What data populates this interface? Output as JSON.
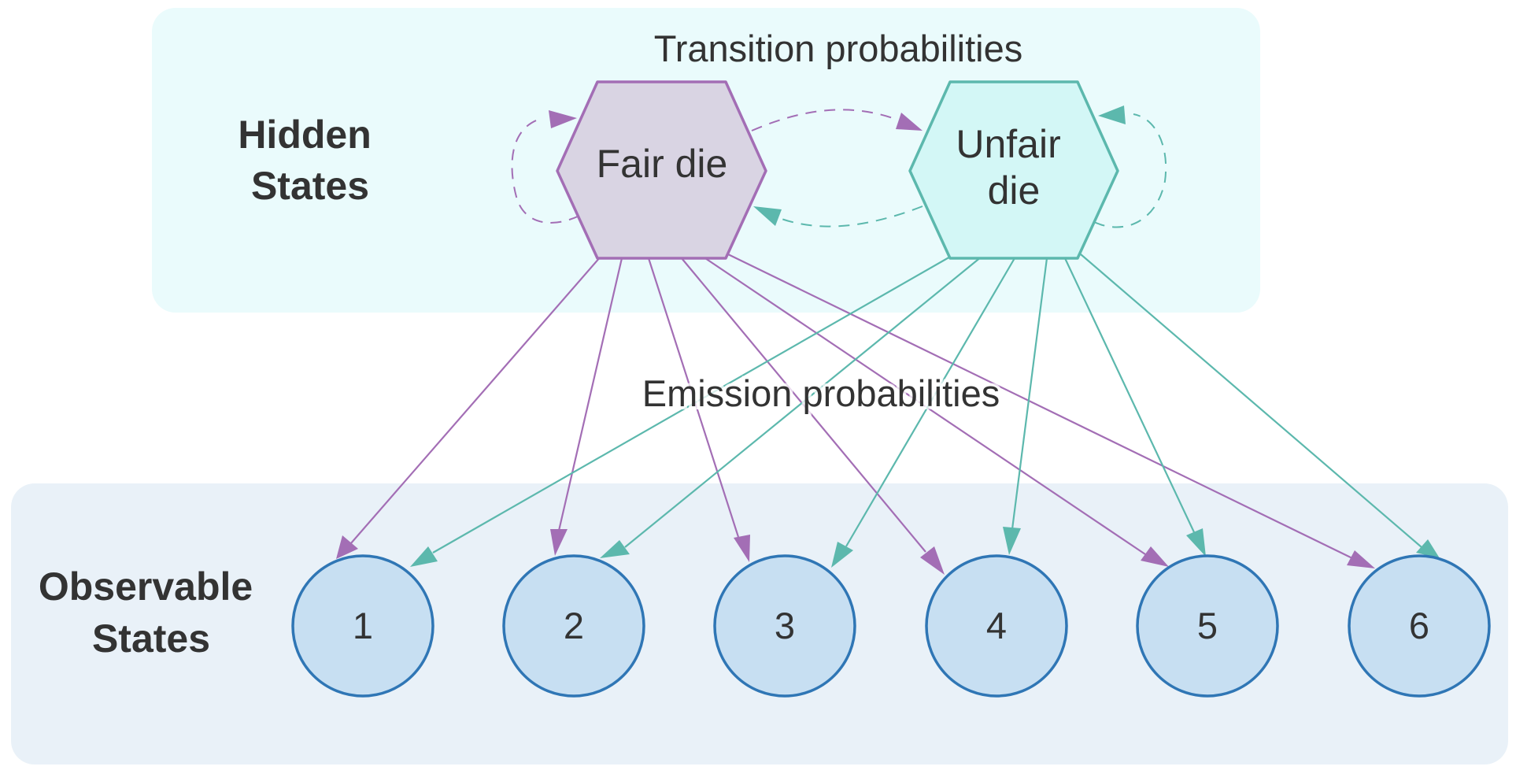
{
  "groups": {
    "hidden": {
      "label_line1": "Hidden",
      "label_line2": "States"
    },
    "observable": {
      "label_line1": "Observable",
      "label_line2": "States"
    }
  },
  "captions": {
    "transition": "Transition probabilities",
    "emission": "Emission probabilities"
  },
  "hidden_states": {
    "fair": {
      "label": "Fair die"
    },
    "unfair": {
      "label_line1": "Unfair",
      "label_line2": "die"
    }
  },
  "observations": [
    "1",
    "2",
    "3",
    "4",
    "5",
    "6"
  ],
  "colors": {
    "hidden_panel": "#eafbfc",
    "observable_panel": "#e9f1f8",
    "fair_fill": "#d9d4e3",
    "fair_stroke": "#a36eb5",
    "unfair_fill": "#d3f7f6",
    "unfair_stroke": "#5cb8ad",
    "obs_fill": "#c7dff2",
    "obs_stroke": "#2f76b5",
    "text": "#333333"
  }
}
